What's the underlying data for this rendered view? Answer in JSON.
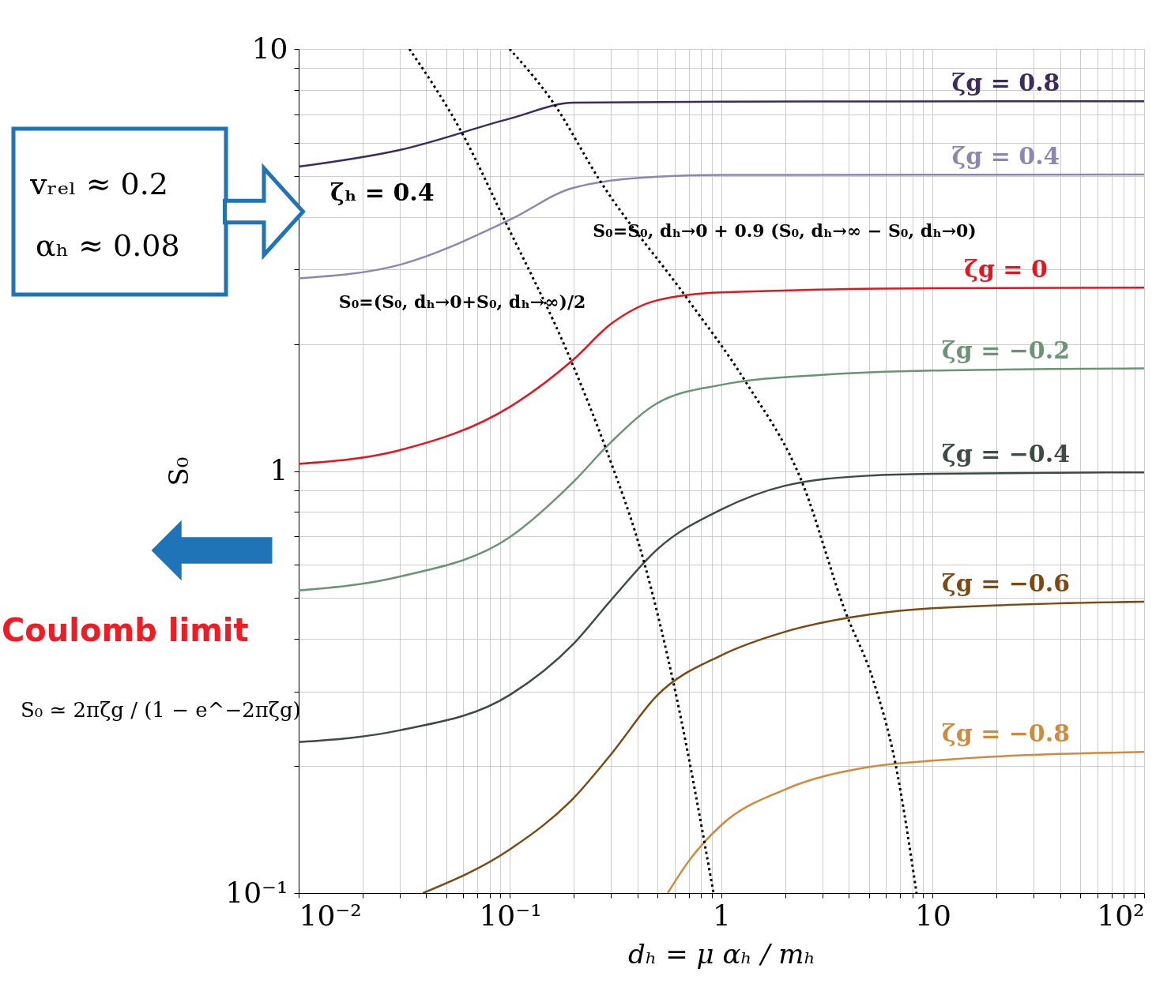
{
  "chart_data": {
    "type": "line",
    "log": "xy",
    "grid": true,
    "marker": "none",
    "xlabel": "dₕ = μ αₕ / mₕ",
    "ylabel": "S₀",
    "xlim": [
      0.01,
      100
    ],
    "ylim": [
      0.1,
      10
    ],
    "xticks": [
      {
        "value": 0.01,
        "label": "10⁻²"
      },
      {
        "value": 0.02,
        "label": null
      },
      {
        "value": 0.03,
        "label": null
      },
      {
        "value": 0.04,
        "label": null
      },
      {
        "value": 0.05,
        "label": null
      },
      {
        "value": 0.06,
        "label": null
      },
      {
        "value": 0.07,
        "label": null
      },
      {
        "value": 0.08,
        "label": null
      },
      {
        "value": 0.09,
        "label": null
      },
      {
        "value": 0.1,
        "label": "10⁻¹"
      },
      {
        "value": 0.2,
        "label": null
      },
      {
        "value": 0.3,
        "label": null
      },
      {
        "value": 0.4,
        "label": null
      },
      {
        "value": 0.5,
        "label": null
      },
      {
        "value": 0.6,
        "label": null
      },
      {
        "value": 0.7,
        "label": null
      },
      {
        "value": 0.8,
        "label": null
      },
      {
        "value": 0.9,
        "label": null
      },
      1,
      {
        "value": 2,
        "label": null
      },
      {
        "value": 3,
        "label": null
      },
      {
        "value": 4,
        "label": null
      },
      {
        "value": 5,
        "label": null
      },
      {
        "value": 6,
        "label": null
      },
      {
        "value": 7,
        "label": null
      },
      {
        "value": 8,
        "label": null
      },
      {
        "value": 9,
        "label": null
      },
      10,
      {
        "value": 20,
        "label": null
      },
      {
        "value": 30,
        "label": null
      },
      {
        "value": 40,
        "label": null
      },
      {
        "value": 50,
        "label": null
      },
      {
        "value": 60,
        "label": null
      },
      {
        "value": 70,
        "label": null
      },
      {
        "value": 80,
        "label": null
      },
      {
        "value": 90,
        "label": null
      },
      {
        "value": 100,
        "label": "10²"
      }
    ],
    "yticks": [
      {
        "value": 0.1,
        "label": "10⁻¹"
      },
      {
        "value": 0.2,
        "label": null
      },
      {
        "value": 0.3,
        "label": null
      },
      {
        "value": 0.4,
        "label": null
      },
      {
        "value": 0.5,
        "label": null
      },
      {
        "value": 0.6,
        "label": null
      },
      {
        "value": 0.7,
        "label": null
      },
      {
        "value": 0.8,
        "label": null
      },
      {
        "value": 0.9,
        "label": null
      },
      1,
      {
        "value": 2,
        "label": null
      },
      {
        "value": 3,
        "label": null
      },
      {
        "value": 4,
        "label": null
      },
      {
        "value": 5,
        "label": null
      },
      {
        "value": 6,
        "label": null
      },
      {
        "value": 7,
        "label": null
      },
      {
        "value": 8,
        "label": null
      },
      {
        "value": 9,
        "label": null
      },
      10
    ],
    "series": [
      {
        "name": "ζg = 0.8",
        "color": "#3d2b5e",
        "x": [
          0.01,
          0.03,
          0.1,
          0.2,
          1,
          100
        ],
        "values": [
          5.26,
          5.76,
          6.84,
          7.46,
          7.5,
          7.52
        ]
      },
      {
        "name": "ζg = 0.4",
        "color": "#8e86b0",
        "x": [
          0.01,
          0.03,
          0.1,
          0.2,
          0.5,
          1,
          100
        ],
        "values": [
          2.86,
          3.08,
          3.94,
          4.69,
          4.98,
          5.03,
          5.04
        ]
      },
      {
        "name": "ζg = 0",
        "color": "#e8141c",
        "x": [
          0.01,
          0.03,
          0.1,
          0.2,
          0.3,
          0.5,
          1,
          10,
          100
        ],
        "values": [
          1.04,
          1.12,
          1.42,
          1.84,
          2.23,
          2.54,
          2.65,
          2.71,
          2.72
        ]
      },
      {
        "name": "ζg = −0.2",
        "color": "#6a9474",
        "x": [
          0.01,
          0.03,
          0.1,
          0.2,
          0.3,
          0.5,
          1,
          3,
          10,
          100
        ],
        "values": [
          0.521,
          0.562,
          0.698,
          0.944,
          1.17,
          1.45,
          1.6,
          1.69,
          1.73,
          1.75
        ]
      },
      {
        "name": "ζg = −0.4",
        "color": "#3e4a44",
        "x": [
          0.01,
          0.03,
          0.1,
          0.2,
          0.3,
          0.5,
          1,
          2,
          5,
          10,
          100
        ],
        "values": [
          0.228,
          0.243,
          0.295,
          0.39,
          0.494,
          0.654,
          0.811,
          0.923,
          0.975,
          0.985,
          0.993
        ]
      },
      {
        "name": "ζg = −0.6",
        "color": "#7a4a12",
        "x": [
          0.0387,
          0.1,
          0.2,
          0.3,
          0.5,
          1,
          2,
          5,
          10,
          100
        ],
        "values": [
          0.1,
          0.127,
          0.168,
          0.213,
          0.295,
          0.366,
          0.416,
          0.457,
          0.473,
          0.49
        ]
      },
      {
        "name": "ζg = −0.8",
        "color": "#d08a3c",
        "x": [
          0.557,
          0.7,
          1,
          2,
          5,
          10,
          100
        ],
        "values": [
          0.1,
          0.119,
          0.145,
          0.176,
          0.199,
          0.206,
          0.216
        ]
      },
      {
        "color": "#000000",
        "line_style": "dotted",
        "x": [
          0.0334,
          0.0595,
          0.094,
          0.193,
          0.284,
          0.43,
          0.61,
          0.918
        ],
        "values": [
          10,
          6.3,
          3.94,
          1.84,
          1.13,
          0.61,
          0.295,
          0.1
        ]
      },
      {
        "color": "#000000",
        "line_style": "dotted",
        "x": [
          0.0995,
          0.159,
          0.268,
          0.69,
          1.31,
          2.41,
          3.86,
          5.22,
          6.64,
          8.38
        ],
        "values": [
          10,
          7.5,
          4.85,
          2.56,
          1.62,
          0.94,
          0.464,
          0.32,
          0.204,
          0.1
        ]
      }
    ],
    "annotations": [
      "ζₕ = 0.4",
      "S₀=S₀, dₕ→0 + 0.9 (S₀, dₕ→∞ − S₀, dₕ→0)",
      "S₀=(S₀, dₕ→0+S₀, dₕ→∞)/2",
      "vᵣₑₗ ≈ 0.2",
      "αₕ ≈ 0.08",
      "Coulomb limit",
      "S₀ ≃ 2πζg / (1 − e^−2πζg)"
    ]
  }
}
